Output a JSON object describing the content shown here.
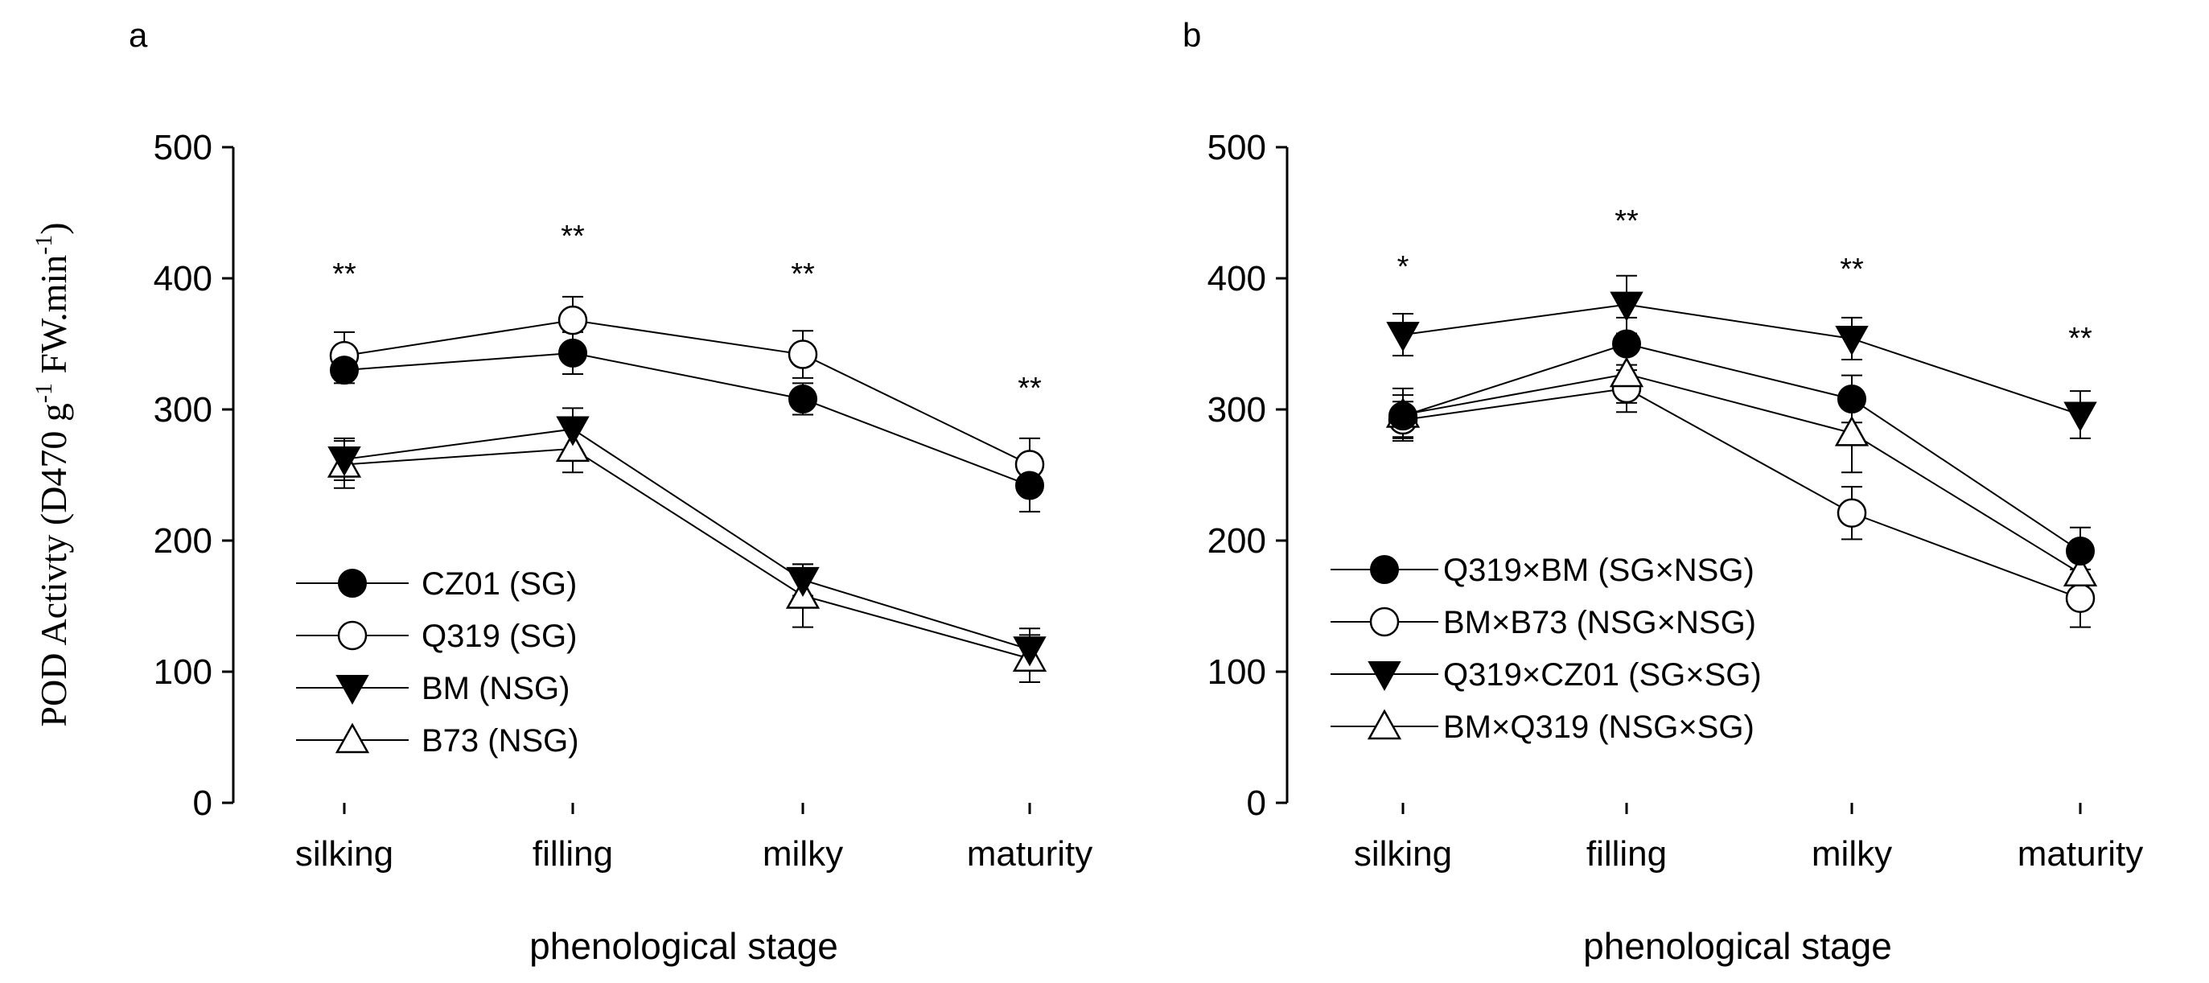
{
  "chart_data": [
    {
      "type": "line",
      "panel_letter": "a",
      "categories": [
        "silking",
        "filling",
        "milky",
        "maturity"
      ],
      "xlabel": "phenological stage",
      "ylabel": {
        "base": "POD Activty (D470 g",
        "sup1": "-1",
        "mid": " FW.min",
        "sup2": "-1",
        "end": ")"
      },
      "ylim": [
        0,
        500
      ],
      "yticks": [
        0,
        100,
        200,
        300,
        400,
        500
      ],
      "significance": [
        "**",
        "**",
        "**",
        "**"
      ],
      "legend_position": "lower-left",
      "series": [
        {
          "name": "CZ01 (SG)",
          "marker": "filled-circle",
          "values": [
            330,
            343,
            308,
            242
          ],
          "errors": [
            10,
            16,
            12,
            20
          ]
        },
        {
          "name": "Q319 (SG)",
          "marker": "open-circle",
          "values": [
            341,
            368,
            342,
            258
          ],
          "errors": [
            18,
            18,
            18,
            20
          ]
        },
        {
          "name": "BM (NSG)",
          "marker": "filled-triangle-down",
          "values": [
            262,
            285,
            170,
            117
          ],
          "errors": [
            16,
            16,
            12,
            16
          ]
        },
        {
          "name": "B73 (NSG)",
          "marker": "open-triangle-up",
          "values": [
            258,
            270,
            158,
            110
          ],
          "errors": [
            18,
            18,
            24,
            18
          ]
        }
      ]
    },
    {
      "type": "line",
      "panel_letter": "b",
      "categories": [
        "silking",
        "filling",
        "milky",
        "maturity"
      ],
      "xlabel": "phenological stage",
      "ylim": [
        0,
        500
      ],
      "yticks": [
        0,
        100,
        200,
        300,
        400,
        500
      ],
      "significance": [
        "*",
        "**",
        "**",
        "**"
      ],
      "legend_position": "lower-left",
      "series": [
        {
          "name": "Q319×BM  (SG×NSG)",
          "marker": "filled-circle",
          "values": [
            295,
            350,
            308,
            192
          ],
          "errors": [
            16,
            20,
            18,
            18
          ]
        },
        {
          "name": "BM×B73 (NSG×NSG)",
          "marker": "open-circle",
          "values": [
            292,
            316,
            221,
            156
          ],
          "errors": [
            14,
            18,
            20,
            22
          ]
        },
        {
          "name": "Q319×CZ01 (SG×SG)",
          "marker": "filled-triangle-down",
          "values": [
            357,
            380,
            354,
            296
          ],
          "errors": [
            16,
            22,
            16,
            18
          ]
        },
        {
          "name": "BM×Q319 (NSG×SG)",
          "marker": "open-triangle-up",
          "values": [
            296,
            327,
            282,
            175
          ],
          "errors": [
            20,
            22,
            30,
            18
          ]
        }
      ]
    }
  ]
}
